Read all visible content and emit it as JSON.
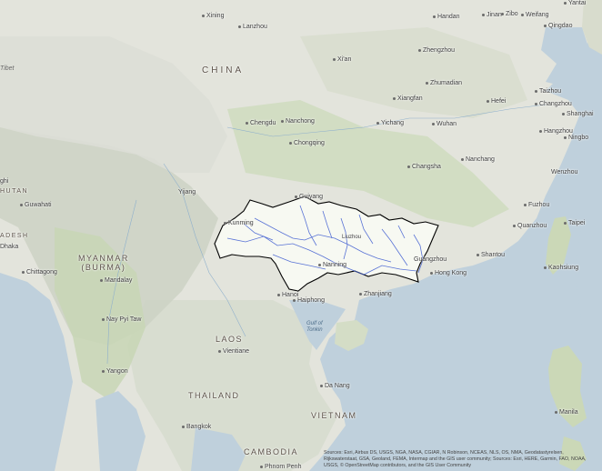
{
  "countries": [
    {
      "id": "china",
      "label": "CHINA"
    },
    {
      "id": "myanmar",
      "label": "MYANMAR\n(BURMA)"
    },
    {
      "id": "laos",
      "label": "LAOS"
    },
    {
      "id": "thailand",
      "label": "THAILAND"
    },
    {
      "id": "vietnam",
      "label": "VIETNAM"
    },
    {
      "id": "cambodia",
      "label": "CAMBODIA"
    },
    {
      "id": "bhutan",
      "label": "BHUTAN"
    },
    {
      "id": "bangladesh",
      "label": "ADESH"
    }
  ],
  "regions": [
    {
      "id": "tibet",
      "label": "Tibet"
    }
  ],
  "water": [
    {
      "id": "gulf-tonkin",
      "label": "Gulf of\nTonkin"
    }
  ],
  "cities": [
    {
      "id": "xining",
      "label": "Xining"
    },
    {
      "id": "lanzhou",
      "label": "Lanzhou"
    },
    {
      "id": "handan",
      "label": "Handan"
    },
    {
      "id": "jinan",
      "label": "Jinan"
    },
    {
      "id": "zibo",
      "label": "Zibo"
    },
    {
      "id": "weifang",
      "label": "Weifang"
    },
    {
      "id": "yantai",
      "label": "Yantai"
    },
    {
      "id": "qingdao",
      "label": "Qingdao"
    },
    {
      "id": "zhengzhou",
      "label": "Zhengzhou"
    },
    {
      "id": "xian",
      "label": "Xi'an"
    },
    {
      "id": "zhumadian",
      "label": "Zhumadian"
    },
    {
      "id": "xiangfan",
      "label": "Xiangfan"
    },
    {
      "id": "hefei",
      "label": "Hefei"
    },
    {
      "id": "taizhou",
      "label": "Taizhou"
    },
    {
      "id": "changzhou",
      "label": "Changzhou"
    },
    {
      "id": "shanghai",
      "label": "Shanghai"
    },
    {
      "id": "chengdu",
      "label": "Chengdu"
    },
    {
      "id": "nanchong",
      "label": "Nanchong"
    },
    {
      "id": "yichang",
      "label": "Yichang"
    },
    {
      "id": "wuhan",
      "label": "Wuhan"
    },
    {
      "id": "hangzhou",
      "label": "Hangzhou"
    },
    {
      "id": "ningbo",
      "label": "Ningbo"
    },
    {
      "id": "chongqing",
      "label": "Chongqing"
    },
    {
      "id": "changsha",
      "label": "Changsha"
    },
    {
      "id": "nanchang",
      "label": "Nanchang"
    },
    {
      "id": "wenzhou",
      "label": "Wenzhou"
    },
    {
      "id": "yijang",
      "label": "Yijang"
    },
    {
      "id": "guiyang",
      "label": "Guiyang"
    },
    {
      "id": "fuzhou",
      "label": "Fuzhou"
    },
    {
      "id": "guwahati",
      "label": "Guwahati"
    },
    {
      "id": "kunming",
      "label": "Kunming"
    },
    {
      "id": "liuzhou",
      "label": "Liuzhou"
    },
    {
      "id": "quanzhou",
      "label": "Quanzhou"
    },
    {
      "id": "taipei",
      "label": "Taipei"
    },
    {
      "id": "dhaka",
      "label": "Dhaka"
    },
    {
      "id": "chittagong",
      "label": "Chittagong"
    },
    {
      "id": "nanning",
      "label": "Nanning"
    },
    {
      "id": "guangzhou",
      "label": "Guangzhou"
    },
    {
      "id": "shantou",
      "label": "Shantou"
    },
    {
      "id": "kaohsiung",
      "label": "Kaohsiung"
    },
    {
      "id": "hongkong",
      "label": "Hong Kong"
    },
    {
      "id": "mandalay",
      "label": "Mandalay"
    },
    {
      "id": "hanoi",
      "label": "Hanoi"
    },
    {
      "id": "zhanjiang",
      "label": "Zhanjiang"
    },
    {
      "id": "haiphong",
      "label": "Haiphong"
    },
    {
      "id": "naypyitaw",
      "label": "Nay Pyi Taw"
    },
    {
      "id": "vientiane",
      "label": "Vientiane"
    },
    {
      "id": "yangon",
      "label": "Yangon"
    },
    {
      "id": "danang",
      "label": "Da Nang"
    },
    {
      "id": "manila",
      "label": "Manila"
    },
    {
      "id": "bangkok",
      "label": "Bangkok"
    },
    {
      "id": "phnompenh",
      "label": "Phnom Penh"
    },
    {
      "id": "ghi",
      "label": "ghi"
    }
  ],
  "attribution": "Sources: Esri, Airbus DS, USGS, NGA, NASA, CGIAR, N Robinson, NCEAS, NLS, OS, NMA, Geodatastyrelsen, Rijkswaterstaat, GSA, Geoland, FEMA, Intermap and the GIS user community; Sources: Esri, HERE, Garmin, FAO, NOAA, USGS, © OpenStreetMap contributors, and the GIS User Community",
  "colors": {
    "sea": "#bfd0dc",
    "land": "#e6e6df",
    "mountain": "#cfd3c5",
    "forest": "#c9d6b8",
    "highlight": "#ffffff",
    "outline": "#000000",
    "river": "#3d5bd0"
  }
}
